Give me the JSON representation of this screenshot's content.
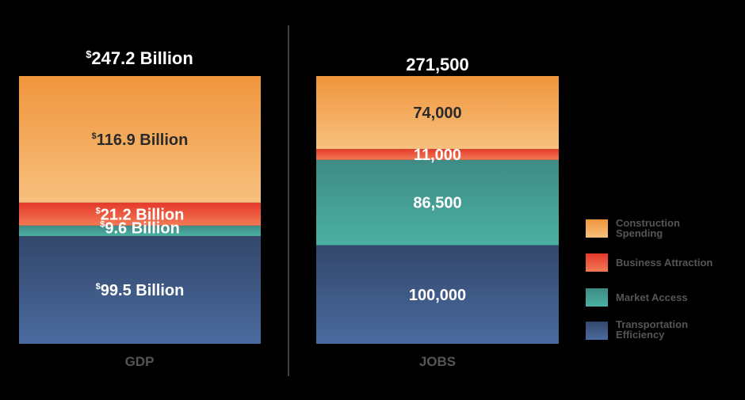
{
  "chart_data": [
    {
      "type": "stacked-bar",
      "xlabel": "GDP",
      "title_prefix": "$",
      "title": "247.2 Billion",
      "total": 247.2,
      "unit": "Billion",
      "segments": [
        {
          "series": "Transportation Efficiency",
          "value": 99.5,
          "prefix": "$",
          "label": "99.5 Billion"
        },
        {
          "series": "Market Access",
          "value": 9.6,
          "prefix": "$",
          "label": "9.6 Billion"
        },
        {
          "series": "Business Attraction",
          "value": 21.2,
          "prefix": "$",
          "label": "21.2 Billion"
        },
        {
          "series": "Construction Spending",
          "value": 116.9,
          "prefix": "$",
          "label": "116.9 Billion"
        }
      ]
    },
    {
      "type": "stacked-bar",
      "xlabel": "JOBS",
      "title_prefix": "",
      "title": "271,500",
      "total": 271500,
      "unit": "",
      "segments": [
        {
          "series": "Transportation Efficiency",
          "value": 100000,
          "prefix": "",
          "label": "100,000"
        },
        {
          "series": "Market Access",
          "value": 86500,
          "prefix": "",
          "label": "86,500"
        },
        {
          "series": "Business Attraction",
          "value": 11000,
          "prefix": "",
          "label": "11,000"
        },
        {
          "series": "Construction Spending",
          "value": 74000,
          "prefix": "",
          "label": "74,000"
        }
      ]
    }
  ],
  "legend": {
    "placement": "right",
    "items": [
      {
        "series": "Construction Spending",
        "line1": "Construction",
        "line2": "Spending",
        "color_top": "#f0953c",
        "color_bottom": "#f7c07e"
      },
      {
        "series": "Business Attraction",
        "line1": "Business Attraction",
        "line2": "",
        "color_top": "#e8402e",
        "color_bottom": "#f27a55"
      },
      {
        "series": "Market Access",
        "line1": "Market Access",
        "line2": "",
        "color_top": "#3f8b86",
        "color_bottom": "#4ab0a2"
      },
      {
        "series": "Transportation Efficiency",
        "line1": "Transportation",
        "line2": "Efficiency",
        "color_top": "#33486b",
        "color_bottom": "#4a6a9f"
      }
    ]
  },
  "colors": {
    "background": "#000000",
    "title_text": "#ffffff",
    "axis_label_text": "#555555",
    "legend_text": "#555555",
    "divider": "#555555",
    "label_dark": "#2a2a2a",
    "label_light": "#ffffff"
  }
}
